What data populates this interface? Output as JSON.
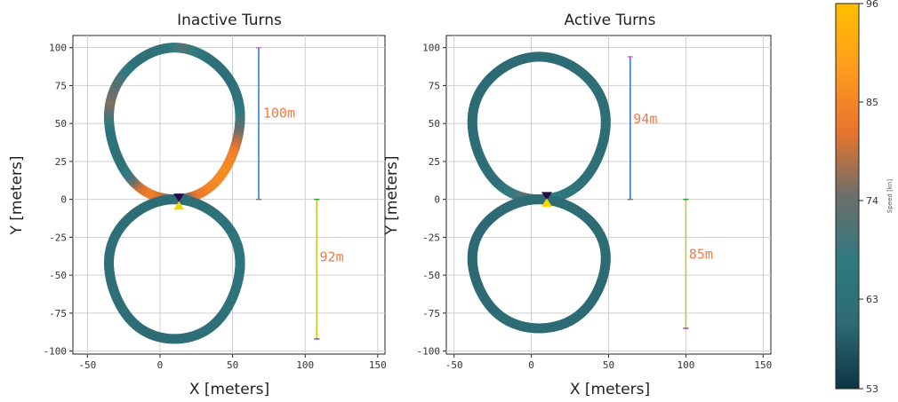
{
  "chart_data": {
    "type": "line",
    "colorbar": {
      "label": "Speed [kn]",
      "ticks": [
        53,
        63,
        74,
        85,
        96
      ],
      "range": [
        53,
        96
      ],
      "colormap": [
        "#0d3442",
        "#2d6a74",
        "#2f7a80",
        "#6b6e6a",
        "#e8742e",
        "#ff9c1e",
        "#ffbf00"
      ]
    },
    "subplots": [
      {
        "title": "Inactive Turns",
        "xlabel": "X [meters]",
        "ylabel": "Y [meters]",
        "xlim": [
          -60,
          155
        ],
        "ylim": [
          -102,
          108
        ],
        "xticks": [
          -50,
          0,
          50,
          100,
          150
        ],
        "yticks": [
          100,
          75,
          50,
          25,
          0,
          -25,
          -50,
          -75,
          -100
        ],
        "grid": true,
        "upper_loop": {
          "cx": 10,
          "cy": 50,
          "rx": 45,
          "ry": 50
        },
        "lower_loop": {
          "cx": 10,
          "cy": -46,
          "rx": 45,
          "ry": 46
        },
        "upper_speed_profile": [
          [
            0,
            66
          ],
          [
            0.03,
            78
          ],
          [
            0.07,
            84
          ],
          [
            0.1,
            80
          ],
          [
            0.14,
            68
          ],
          [
            0.18,
            63
          ],
          [
            0.24,
            64
          ],
          [
            0.3,
            76
          ],
          [
            0.36,
            70
          ],
          [
            0.42,
            62
          ],
          [
            0.48,
            64
          ],
          [
            0.53,
            72
          ],
          [
            0.58,
            64
          ],
          [
            0.64,
            62
          ],
          [
            0.7,
            64
          ],
          [
            0.74,
            68
          ],
          [
            0.78,
            76
          ],
          [
            0.82,
            84
          ],
          [
            0.87,
            86
          ],
          [
            0.92,
            85
          ],
          [
            0.96,
            82
          ],
          [
            1.0,
            66
          ]
        ],
        "lower_speed_profile": [
          [
            0,
            62
          ],
          [
            0.04,
            61
          ],
          [
            0.15,
            62
          ],
          [
            0.25,
            63
          ],
          [
            0.35,
            62
          ],
          [
            0.45,
            61
          ],
          [
            0.55,
            62
          ],
          [
            0.65,
            63
          ],
          [
            0.72,
            64
          ],
          [
            0.8,
            65
          ],
          [
            0.88,
            64
          ],
          [
            0.94,
            62
          ],
          [
            1.0,
            62
          ]
        ],
        "markers": [
          {
            "type": "triangle-down",
            "x": 13,
            "y": 1,
            "color": "#2b0a4a"
          },
          {
            "type": "triangle-up",
            "x": 13,
            "y": -4,
            "color": "#f2d600"
          }
        ],
        "dimension_lines": [
          {
            "x": 68,
            "y_from": 0,
            "y_to": 100,
            "label": "100m",
            "label_x": 71,
            "label_y": 54,
            "color": "#2f6fd6"
          },
          {
            "x": 108,
            "y_from": -92,
            "y_to": 0,
            "label": "92m",
            "label_x": 110,
            "label_y": -41,
            "color": "#c8c81a"
          }
        ]
      },
      {
        "title": "Active Turns",
        "xlabel": "X [meters]",
        "ylabel": "Y [meters]",
        "xlim": [
          -55,
          155
        ],
        "ylim": [
          -102,
          108
        ],
        "xticks": [
          -50,
          0,
          50,
          100,
          150
        ],
        "yticks": [
          100,
          75,
          50,
          25,
          0,
          -25,
          -50,
          -75,
          -100
        ],
        "grid": true,
        "upper_loop": {
          "cx": 5,
          "cy": 47,
          "rx": 43,
          "ry": 47
        },
        "lower_loop": {
          "cx": 5,
          "cy": -42.5,
          "rx": 43,
          "ry": 42.5
        },
        "upper_speed_profile": [
          [
            0,
            68
          ],
          [
            0.04,
            74
          ],
          [
            0.08,
            68
          ],
          [
            0.12,
            63
          ],
          [
            0.25,
            61
          ],
          [
            0.4,
            60
          ],
          [
            0.55,
            61
          ],
          [
            0.7,
            62
          ],
          [
            0.82,
            62
          ],
          [
            0.9,
            63
          ],
          [
            0.94,
            66
          ],
          [
            1.0,
            68
          ]
        ],
        "lower_speed_profile": [
          [
            0,
            61
          ],
          [
            0.15,
            60
          ],
          [
            0.3,
            60
          ],
          [
            0.5,
            61
          ],
          [
            0.7,
            60
          ],
          [
            0.85,
            61
          ],
          [
            1.0,
            61
          ]
        ],
        "markers": [
          {
            "type": "triangle-down",
            "x": 10,
            "y": 2,
            "color": "#2b0a4a"
          },
          {
            "type": "triangle-up",
            "x": 10,
            "y": -2,
            "color": "#f2d600"
          }
        ],
        "dimension_lines": [
          {
            "x": 64,
            "y_from": 0,
            "y_to": 94,
            "label": "94m",
            "label_x": 66,
            "label_y": 50,
            "color": "#2f6fd6"
          },
          {
            "x": 100,
            "y_from": -85,
            "y_to": 0,
            "label": "85m",
            "label_x": 102,
            "label_y": -39,
            "color": "#c8c81a"
          }
        ]
      }
    ]
  }
}
